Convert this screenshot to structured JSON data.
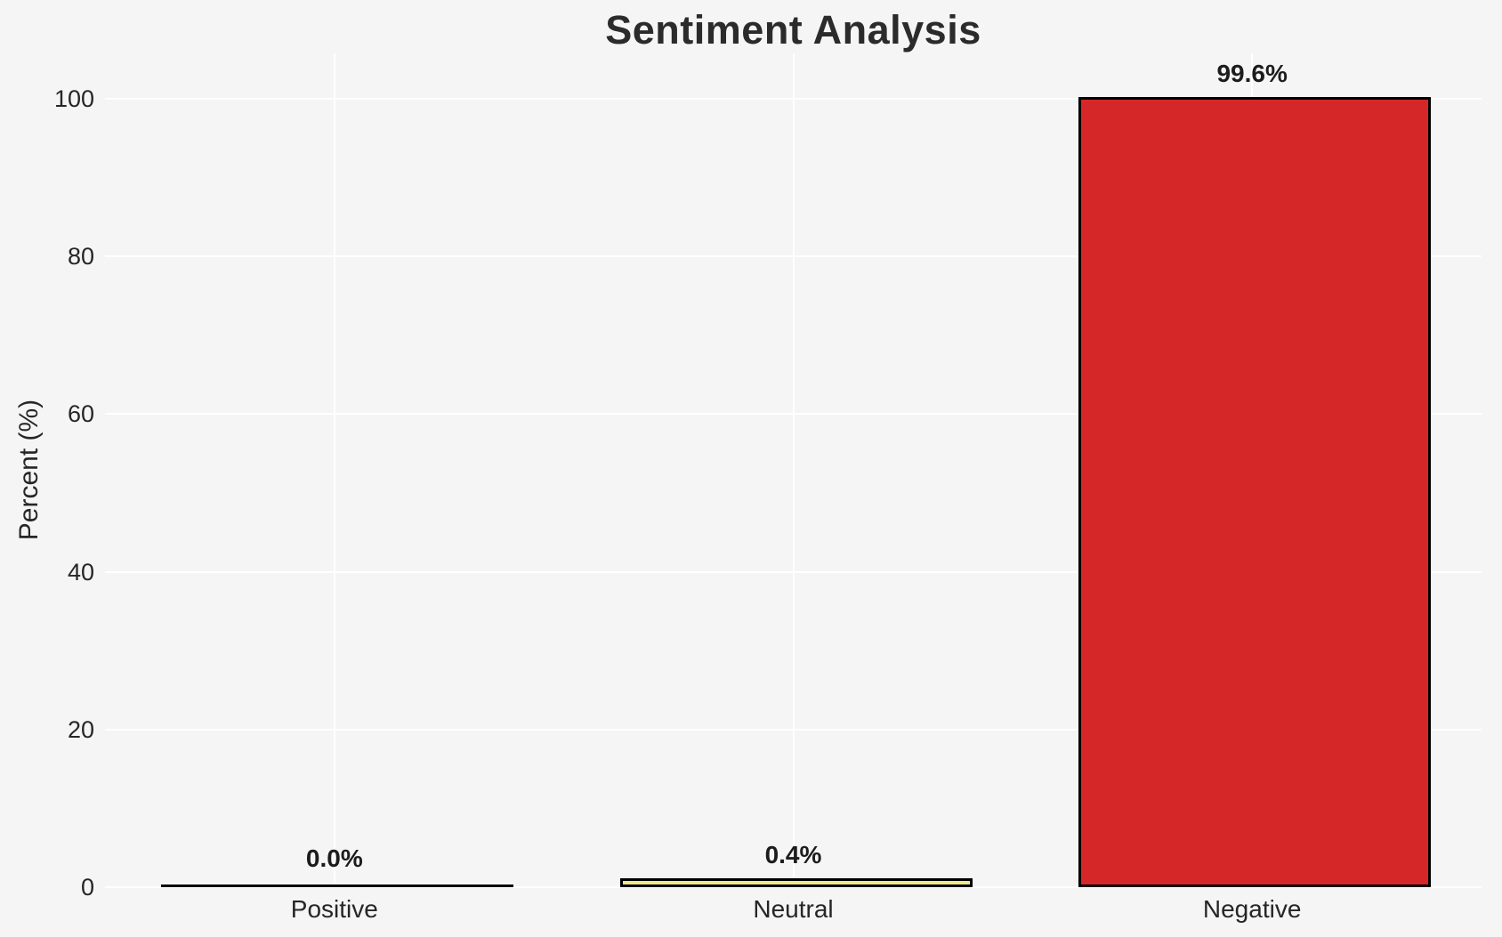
{
  "chart_data": {
    "type": "bar",
    "title": "Sentiment Analysis",
    "xlabel": "",
    "ylabel": "Percent (%)",
    "categories": [
      "Positive",
      "Neutral",
      "Negative"
    ],
    "values": [
      0.0,
      0.4,
      99.6
    ],
    "value_labels": [
      "0.0%",
      "0.4%",
      "99.6%"
    ],
    "bar_colors": [
      "#2ca02c",
      "#f0e68c",
      "#d62728"
    ],
    "bar_edge_color": "#000000",
    "yticks": [
      0,
      20,
      40,
      60,
      80,
      100
    ],
    "ylim": [
      0,
      100
    ],
    "grid": true,
    "grid_color": "#ffffff",
    "background_color": "#f5f5f6",
    "text_color": "#262626",
    "legend_position": "none"
  }
}
